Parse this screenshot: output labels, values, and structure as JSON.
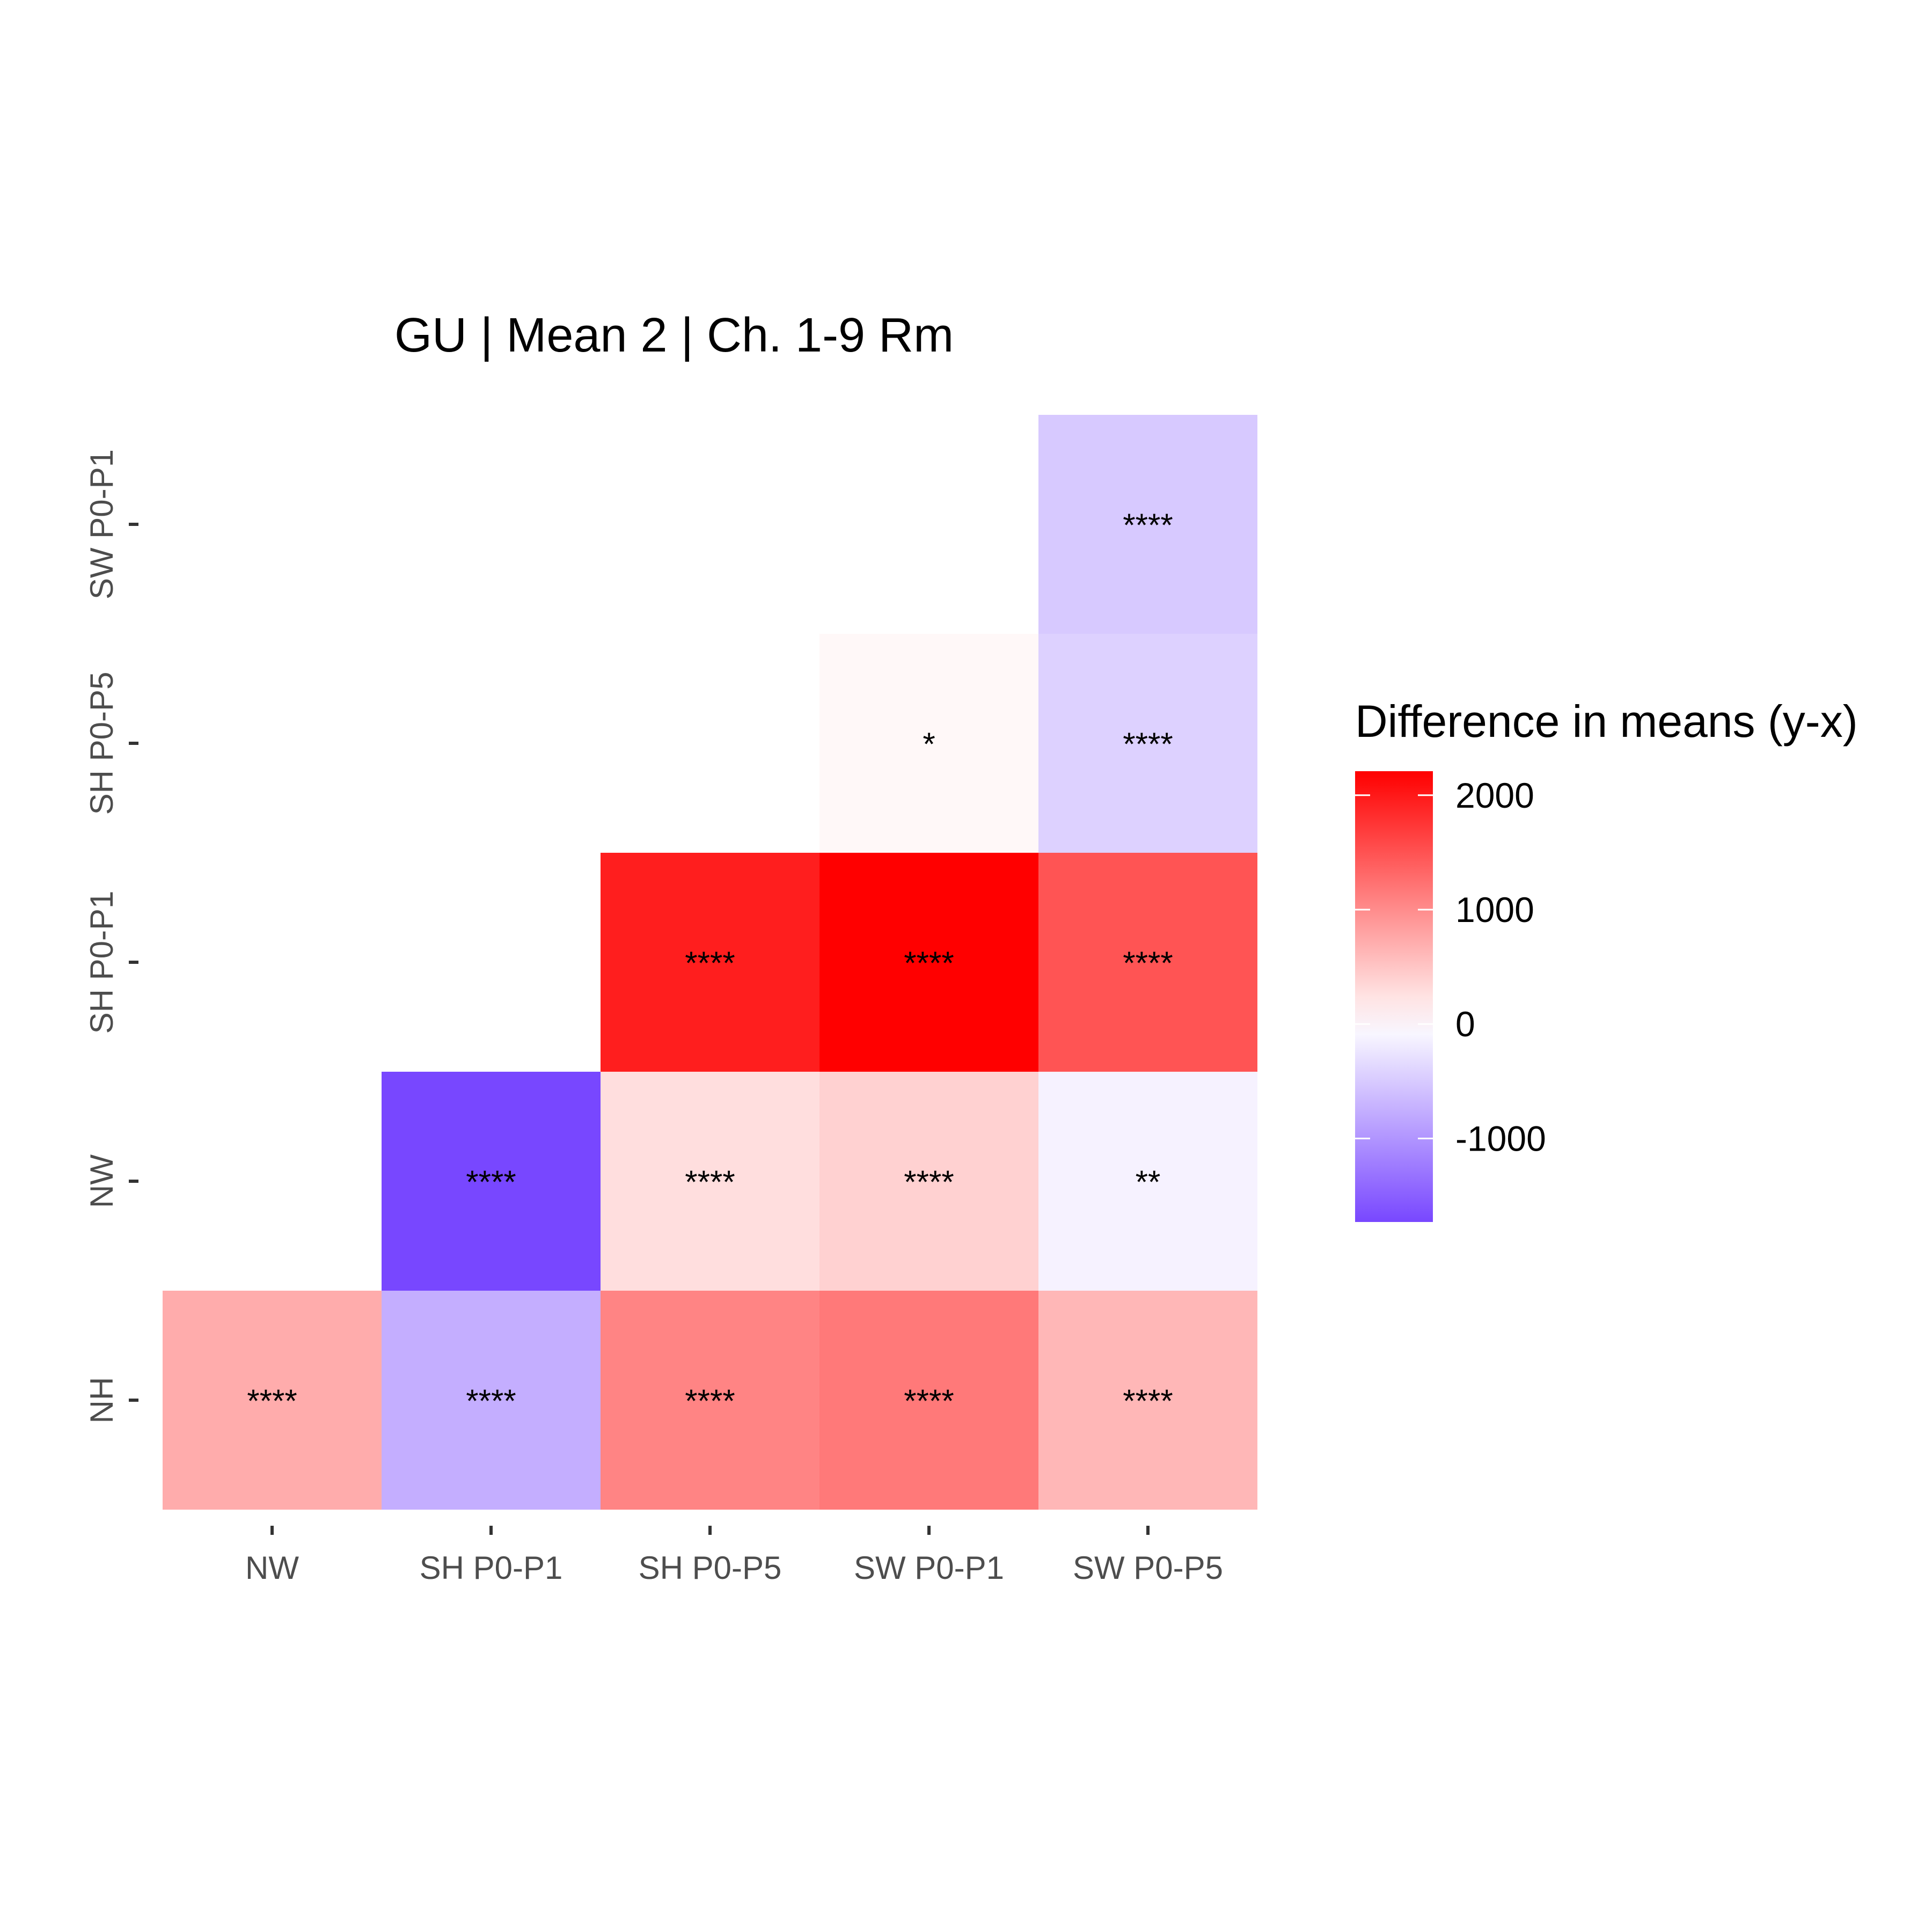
{
  "chart_data": {
    "type": "heatmap",
    "title": "GU | Mean 2 | Ch. 1-9 Rm",
    "xlabel": "",
    "ylabel": "",
    "x_categories": [
      "NW",
      "SH P0-P1",
      "SH P0-P5",
      "SW P0-P1",
      "SW P0-P5"
    ],
    "y_categories": [
      "NH",
      "NW",
      "SH P0-P1",
      "SH P0-P5",
      "SW P0-P1"
    ],
    "legend": {
      "title": "Difference in means (y-x)",
      "position": "right",
      "ticks": [
        2000,
        1000,
        0,
        -1000
      ],
      "range": [
        -1730,
        2210
      ],
      "colors": {
        "low": "#7847ff",
        "mid": "#ffffff",
        "high": "#ff0000"
      }
    },
    "cells": [
      {
        "x": "NW",
        "y": "NH",
        "value": 720,
        "label": "****"
      },
      {
        "x": "SH P0-P1",
        "y": "NH",
        "value": -760,
        "label": "****"
      },
      {
        "x": "SH P0-P5",
        "y": "NH",
        "value": 1070,
        "label": "****"
      },
      {
        "x": "SW P0-P1",
        "y": "NH",
        "value": 1160,
        "label": "****"
      },
      {
        "x": "SW P0-P5",
        "y": "NH",
        "value": 620,
        "label": "****"
      },
      {
        "x": "SH P0-P1",
        "y": "NW",
        "value": -1730,
        "label": "****"
      },
      {
        "x": "SH P0-P5",
        "y": "NW",
        "value": 290,
        "label": "****"
      },
      {
        "x": "SW P0-P1",
        "y": "NW",
        "value": 400,
        "label": "****"
      },
      {
        "x": "SW P0-P5",
        "y": "NW",
        "value": -120,
        "label": "**"
      },
      {
        "x": "SH P0-P5",
        "y": "SH P0-P1",
        "value": 1950,
        "label": "****"
      },
      {
        "x": "SW P0-P1",
        "y": "SH P0-P1",
        "value": 2210,
        "label": "****"
      },
      {
        "x": "SW P0-P5",
        "y": "SH P0-P1",
        "value": 1480,
        "label": "****"
      },
      {
        "x": "SW P0-P1",
        "y": "SH P0-P5",
        "value": 60,
        "label": "*"
      },
      {
        "x": "SW P0-P5",
        "y": "SH P0-P5",
        "value": -430,
        "label": "****"
      },
      {
        "x": "SW P0-P5",
        "y": "SW P0-P1",
        "value": -510,
        "label": "****"
      }
    ]
  }
}
